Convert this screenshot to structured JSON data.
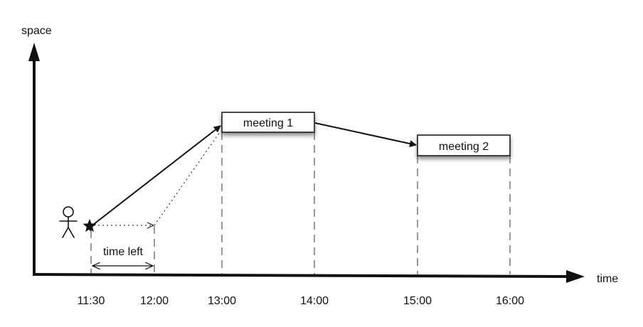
{
  "axes": {
    "y_label": "space",
    "x_label": "time"
  },
  "ticks": [
    "11:30",
    "12:00",
    "13:00",
    "14:00",
    "15:00",
    "16:00"
  ],
  "meetings": [
    {
      "label": "meeting 1",
      "start": "13:00",
      "end": "14:00"
    },
    {
      "label": "meeting 2",
      "start": "15:00",
      "end": "16:00"
    }
  ],
  "annotations": {
    "time_left": "time left"
  },
  "icons": {
    "person": "stick-figure-icon",
    "current_position": "star-icon"
  },
  "colors": {
    "line": "#111111",
    "box_fill": "#ffffff"
  }
}
